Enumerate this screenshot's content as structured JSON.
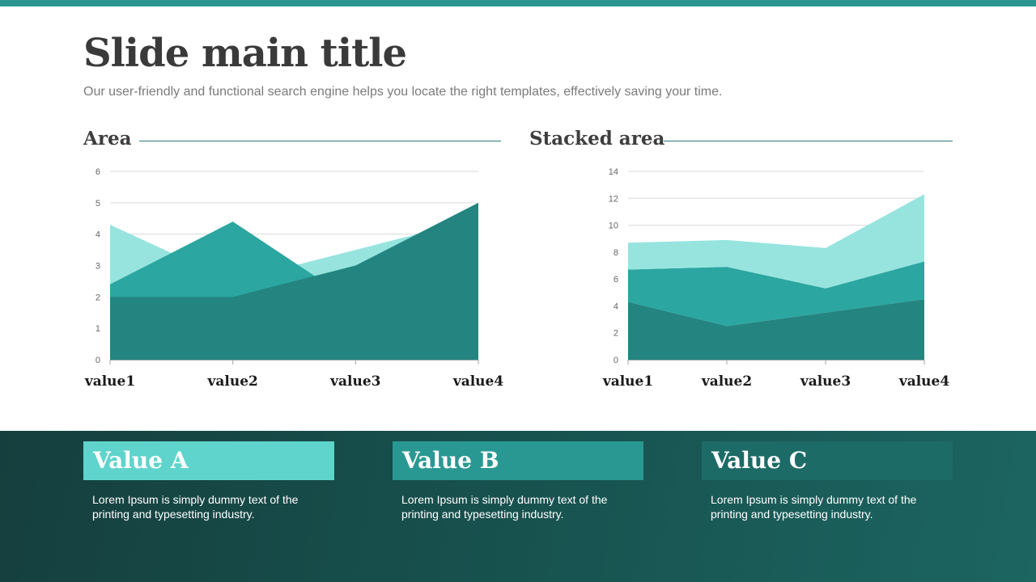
{
  "slide": {
    "title": "Slide main title",
    "subtitle": "Our user-friendly and functional search engine helps you locate the right templates, effectively saving your time."
  },
  "chart_data": [
    {
      "type": "area",
      "title": "Area",
      "categories": [
        "value1",
        "value2",
        "value3",
        "value4"
      ],
      "ylim": [
        0,
        6
      ],
      "yticks": [
        "0",
        "1",
        "2",
        "3",
        "4",
        "5",
        "6"
      ],
      "grid": true,
      "series": [
        {
          "values": [
            4.3,
            2.5,
            3.5,
            4.5
          ],
          "color": "#97e4df"
        },
        {
          "values": [
            2.4,
            4.4,
            1.8,
            2.8
          ],
          "color": "#2ba6a0"
        },
        {
          "values": [
            2.0,
            2.0,
            3.0,
            5.0
          ],
          "color": "#238480"
        }
      ]
    },
    {
      "type": "stacked-area",
      "title": "Stacked area",
      "categories": [
        "value1",
        "value2",
        "value3",
        "value4"
      ],
      "ylim": [
        0,
        14
      ],
      "yticks": [
        "0",
        "2",
        "4",
        "6",
        "8",
        "10",
        "12",
        "14"
      ],
      "grid": true,
      "series": [
        {
          "values": [
            4.3,
            2.5,
            3.5,
            4.5
          ],
          "color": "#238480"
        },
        {
          "values": [
            2.4,
            4.4,
            1.8,
            2.8
          ],
          "color": "#2ba6a0"
        },
        {
          "values": [
            2.0,
            2.0,
            3.0,
            5.0
          ],
          "color": "#97e4df"
        }
      ]
    }
  ],
  "cards": [
    {
      "title": "Value A",
      "text_line1": "Lorem Ipsum is simply dummy text of the",
      "text_line2": "printing and typesetting industry.",
      "color": "#5fd4cc"
    },
    {
      "title": "Value B",
      "text_line1": "Lorem Ipsum is simply dummy text of the",
      "text_line2": "printing and typesetting industry.",
      "color": "#2a9892"
    },
    {
      "title": "Value C",
      "text_line1": "Lorem Ipsum is simply dummy text of the",
      "text_line2": "printing and typesetting industry.",
      "color": "#1d6b67"
    }
  ]
}
